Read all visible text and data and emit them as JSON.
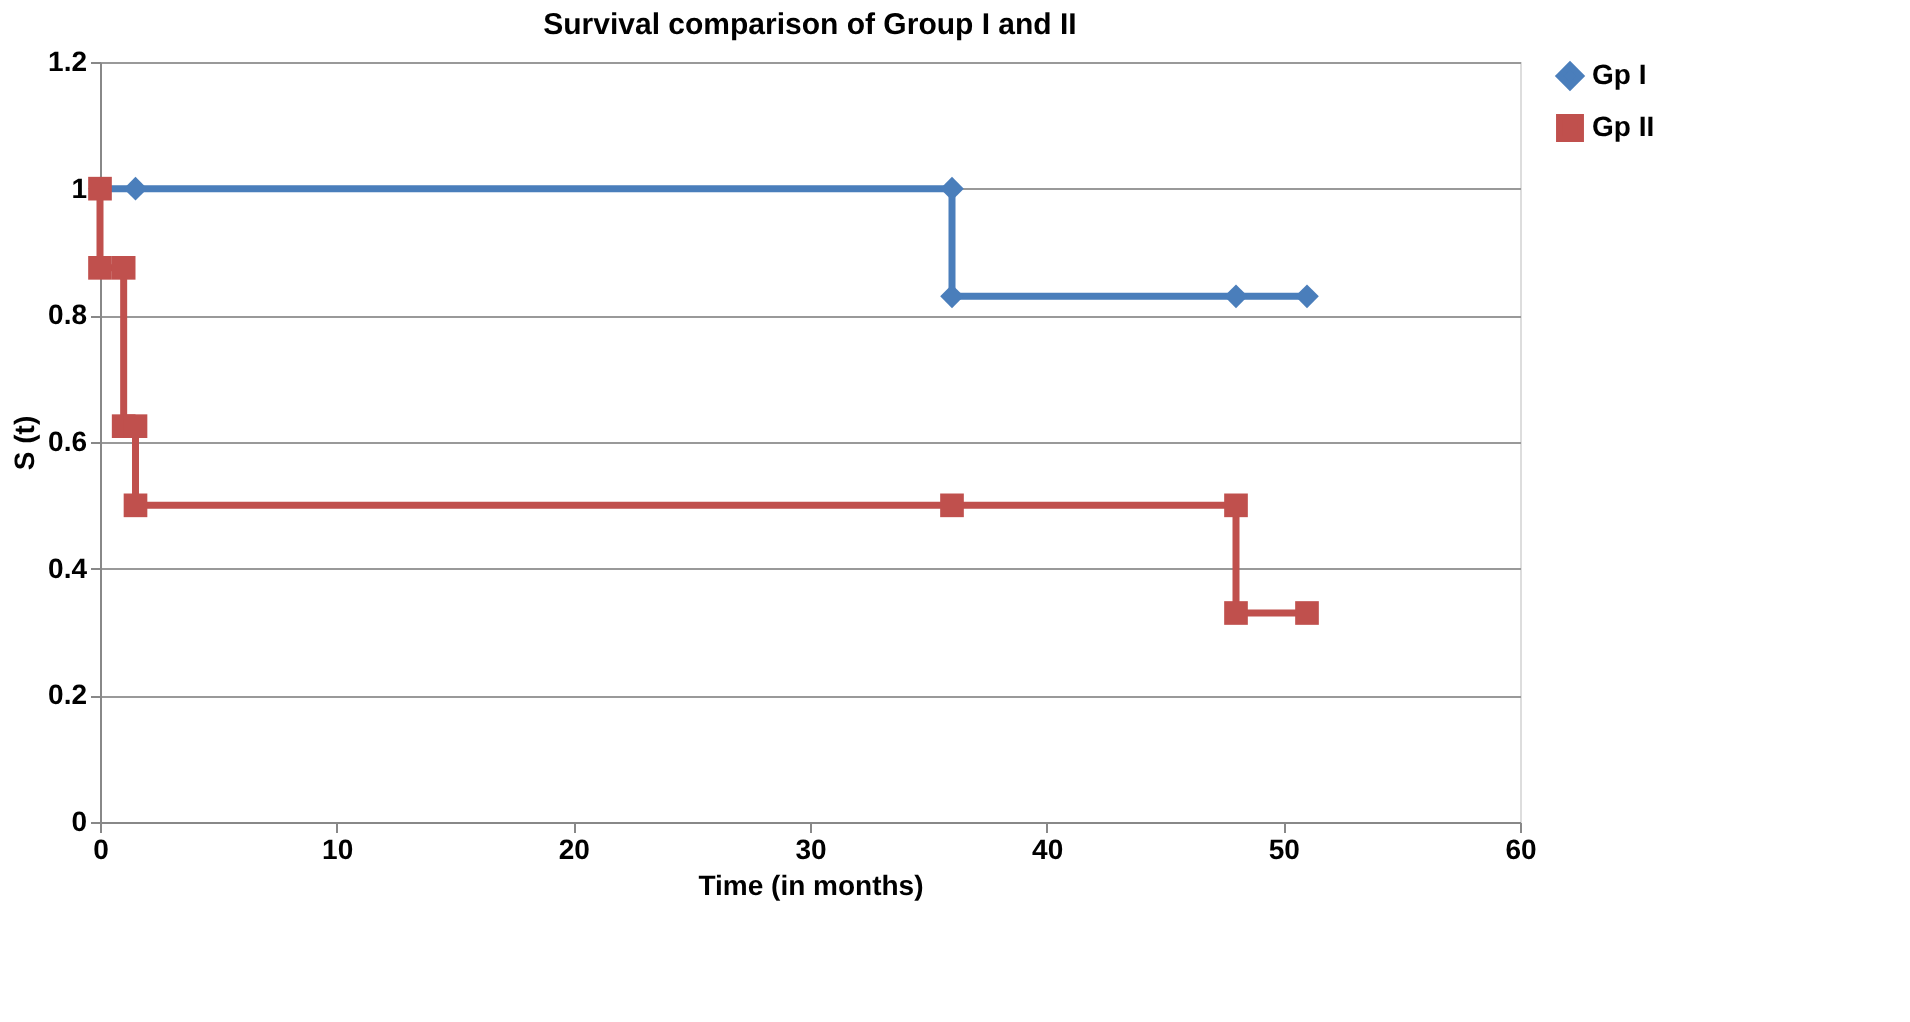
{
  "chart_data": {
    "type": "line",
    "title": "Survival comparison of Group I and II",
    "xlabel": "Time (in months)",
    "ylabel": "S (t)",
    "xlim": [
      0,
      60
    ],
    "xticks": [
      0,
      10,
      20,
      30,
      40,
      50,
      60
    ],
    "ylim": [
      0,
      1.2
    ],
    "yticks": [
      0,
      0.2,
      0.4,
      0.6,
      0.8,
      1,
      1.2
    ],
    "grid": "y",
    "legend": "right",
    "line_style": "solid",
    "series": [
      {
        "name": "Gp I",
        "color": "#4a7ebb",
        "marker": "diamond",
        "x": [
          0,
          1.5,
          36,
          36,
          48,
          51
        ],
        "values": [
          1,
          1,
          1,
          0.83,
          0.83,
          0.83
        ]
      },
      {
        "name": "Gp II",
        "color": "#c0504d",
        "marker": "square",
        "x": [
          0,
          0,
          1,
          1,
          1.5,
          1.5,
          36,
          48,
          48,
          51
        ],
        "values": [
          1,
          0.875,
          0.875,
          0.625,
          0.625,
          0.5,
          0.5,
          0.5,
          0.33,
          0.33
        ]
      }
    ]
  }
}
